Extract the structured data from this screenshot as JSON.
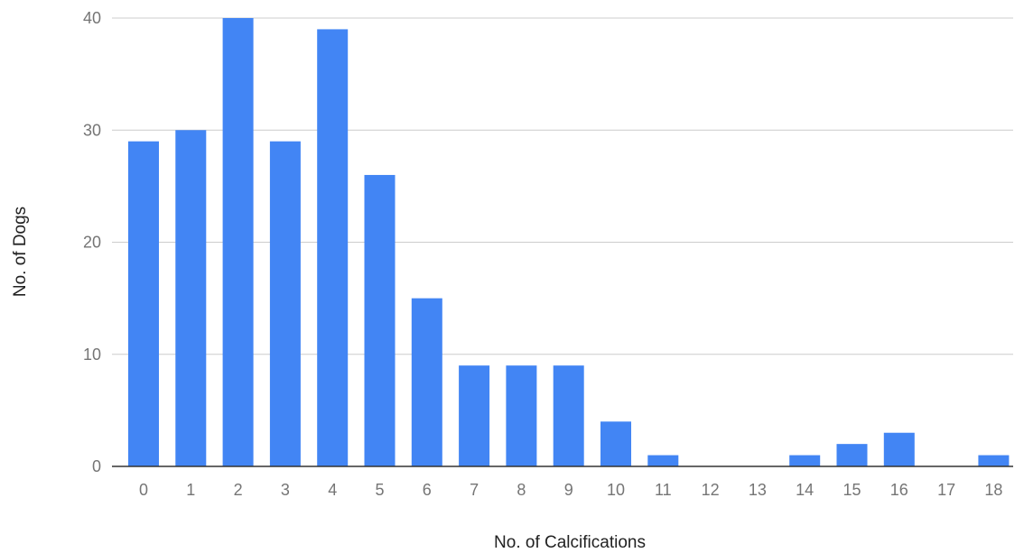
{
  "chart_data": {
    "type": "bar",
    "title": "",
    "xlabel": "No. of Calcifications",
    "ylabel": "No. of Dogs",
    "categories": [
      "0",
      "1",
      "2",
      "3",
      "4",
      "5",
      "6",
      "7",
      "8",
      "9",
      "10",
      "11",
      "12",
      "13",
      "14",
      "15",
      "16",
      "17",
      "18"
    ],
    "values": [
      29,
      30,
      40,
      29,
      39,
      26,
      15,
      9,
      9,
      9,
      4,
      1,
      0,
      0,
      1,
      2,
      3,
      0,
      1
    ],
    "ylim": [
      0,
      40
    ],
    "yticks": [
      "0",
      "10",
      "20",
      "30",
      "40"
    ],
    "grid": true,
    "legend": "none",
    "bar_color": "#4285f4"
  }
}
